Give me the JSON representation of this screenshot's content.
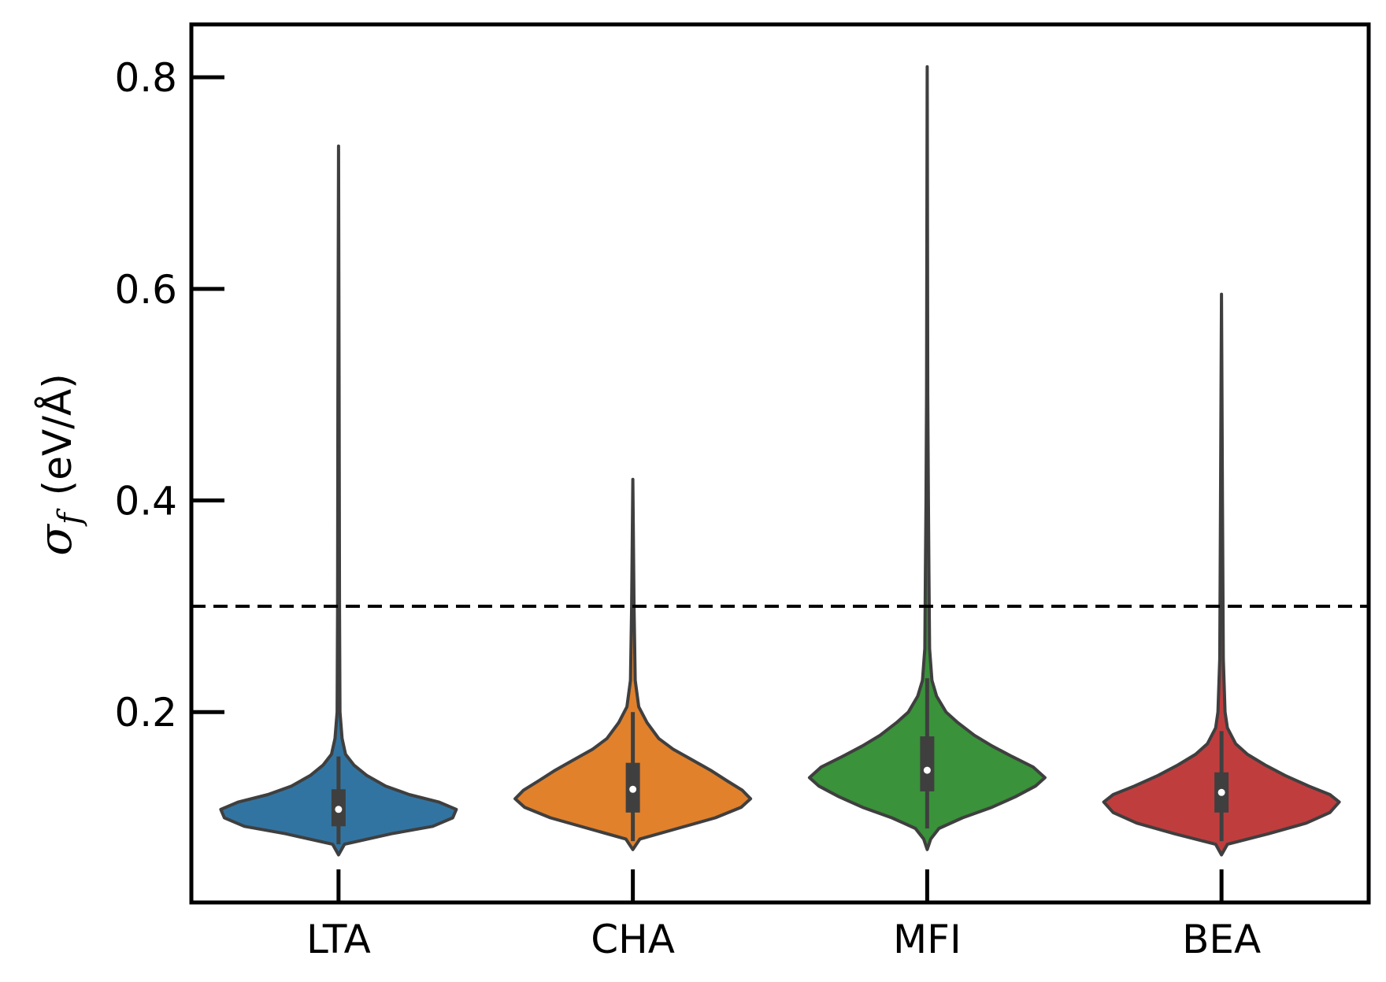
{
  "chart_data": {
    "type": "violin",
    "categories": [
      "LTA",
      "CHA",
      "MFI",
      "BEA"
    ],
    "ylabel_symbol": "σ",
    "ylabel_subscript": "f",
    "ylabel_unit": "(eV/Å)",
    "xlabel": "",
    "ylim": [
      0.02,
      0.85
    ],
    "yticks": [
      0.2,
      0.4,
      0.6,
      0.8
    ],
    "ytick_labels": [
      "0.2",
      "0.4",
      "0.6",
      "0.8"
    ],
    "grid": false,
    "reference_line": {
      "y": 0.3,
      "style": "dashed",
      "color": "#000000"
    },
    "series": [
      {
        "category": "LTA",
        "color": "#3274a1",
        "min": 0.065,
        "max": 0.735,
        "q1": 0.092,
        "median": 0.108,
        "q3": 0.127,
        "whisker_low": 0.075,
        "whisker_high": 0.158,
        "density": [
          [
            0.065,
            0.0
          ],
          [
            0.075,
            0.05
          ],
          [
            0.085,
            0.45
          ],
          [
            0.092,
            0.8
          ],
          [
            0.1,
            0.97
          ],
          [
            0.108,
            1.0
          ],
          [
            0.115,
            0.85
          ],
          [
            0.122,
            0.6
          ],
          [
            0.13,
            0.4
          ],
          [
            0.14,
            0.24
          ],
          [
            0.15,
            0.13
          ],
          [
            0.16,
            0.06
          ],
          [
            0.175,
            0.03
          ],
          [
            0.2,
            0.012
          ],
          [
            0.3,
            0.008
          ],
          [
            0.5,
            0.005
          ],
          [
            0.735,
            0.0
          ]
        ]
      },
      {
        "category": "CHA",
        "color": "#e1812c",
        "min": 0.07,
        "max": 0.42,
        "q1": 0.105,
        "median": 0.127,
        "q3": 0.152,
        "whisker_low": 0.078,
        "whisker_high": 0.2,
        "density": [
          [
            0.07,
            0.0
          ],
          [
            0.08,
            0.06
          ],
          [
            0.09,
            0.38
          ],
          [
            0.1,
            0.7
          ],
          [
            0.11,
            0.92
          ],
          [
            0.118,
            1.0
          ],
          [
            0.126,
            0.93
          ],
          [
            0.135,
            0.8
          ],
          [
            0.145,
            0.66
          ],
          [
            0.155,
            0.5
          ],
          [
            0.165,
            0.34
          ],
          [
            0.175,
            0.22
          ],
          [
            0.19,
            0.12
          ],
          [
            0.205,
            0.05
          ],
          [
            0.23,
            0.02
          ],
          [
            0.3,
            0.01
          ],
          [
            0.42,
            0.0
          ]
        ]
      },
      {
        "category": "MFI",
        "color": "#3a923a",
        "min": 0.07,
        "max": 0.81,
        "q1": 0.125,
        "median": 0.145,
        "q3": 0.177,
        "whisker_low": 0.09,
        "whisker_high": 0.232,
        "density": [
          [
            0.07,
            0.0
          ],
          [
            0.08,
            0.03
          ],
          [
            0.09,
            0.1
          ],
          [
            0.1,
            0.3
          ],
          [
            0.11,
            0.55
          ],
          [
            0.12,
            0.75
          ],
          [
            0.13,
            0.92
          ],
          [
            0.138,
            1.0
          ],
          [
            0.148,
            0.9
          ],
          [
            0.158,
            0.72
          ],
          [
            0.168,
            0.55
          ],
          [
            0.178,
            0.4
          ],
          [
            0.19,
            0.26
          ],
          [
            0.2,
            0.16
          ],
          [
            0.215,
            0.08
          ],
          [
            0.23,
            0.04
          ],
          [
            0.26,
            0.02
          ],
          [
            0.33,
            0.015
          ],
          [
            0.4,
            0.01
          ],
          [
            0.5,
            0.005
          ],
          [
            0.81,
            0.0
          ]
        ]
      },
      {
        "category": "BEA",
        "color": "#c03d3e",
        "min": 0.065,
        "max": 0.595,
        "q1": 0.105,
        "median": 0.124,
        "q3": 0.143,
        "whisker_low": 0.078,
        "whisker_high": 0.182,
        "density": [
          [
            0.065,
            0.0
          ],
          [
            0.075,
            0.05
          ],
          [
            0.085,
            0.4
          ],
          [
            0.095,
            0.72
          ],
          [
            0.105,
            0.92
          ],
          [
            0.115,
            1.0
          ],
          [
            0.122,
            0.92
          ],
          [
            0.13,
            0.74
          ],
          [
            0.14,
            0.54
          ],
          [
            0.15,
            0.37
          ],
          [
            0.16,
            0.22
          ],
          [
            0.17,
            0.12
          ],
          [
            0.185,
            0.05
          ],
          [
            0.2,
            0.03
          ],
          [
            0.25,
            0.015
          ],
          [
            0.4,
            0.008
          ],
          [
            0.595,
            0.0
          ]
        ]
      }
    ]
  }
}
